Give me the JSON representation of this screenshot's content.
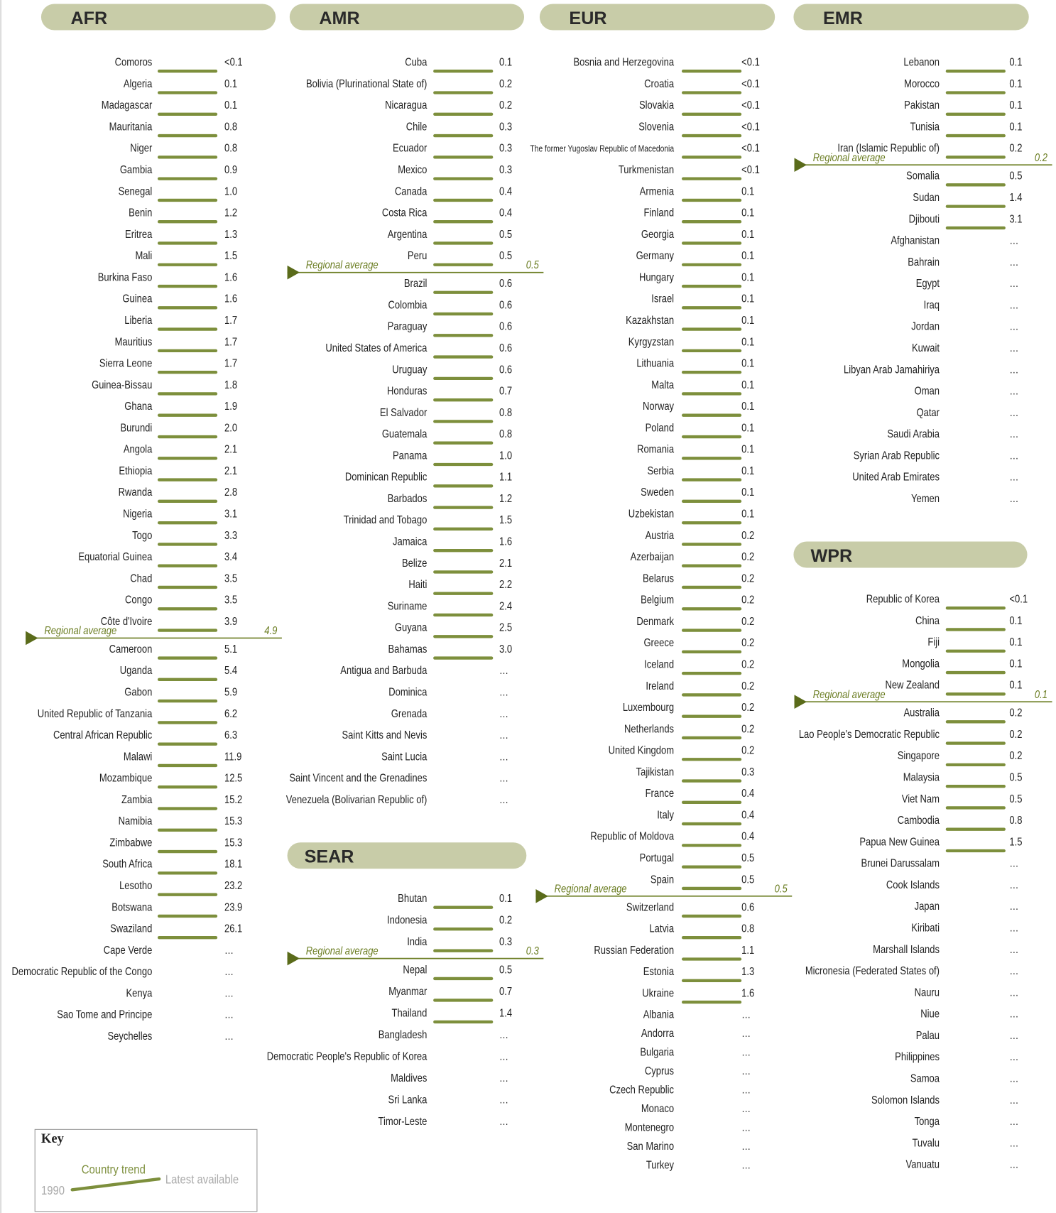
{
  "regions": [
    {
      "name": "AFR",
      "above_average": [
        {
          "country": "Comoros",
          "value": "<0.1"
        },
        {
          "country": "Algeria",
          "value": "0.1"
        },
        {
          "country": "Madagascar",
          "value": "0.1"
        },
        {
          "country": "Mauritania",
          "value": "0.8"
        },
        {
          "country": "Niger",
          "value": "0.8"
        },
        {
          "country": "Gambia",
          "value": "0.9"
        },
        {
          "country": "Senegal",
          "value": "1.0"
        },
        {
          "country": "Benin",
          "value": "1.2"
        },
        {
          "country": "Eritrea",
          "value": "1.3"
        },
        {
          "country": "Mali",
          "value": "1.5"
        },
        {
          "country": "Burkina Faso",
          "value": "1.6"
        },
        {
          "country": "Guinea",
          "value": "1.6"
        },
        {
          "country": "Liberia",
          "value": "1.7"
        },
        {
          "country": "Mauritius",
          "value": "1.7"
        },
        {
          "country": "Sierra Leone",
          "value": "1.7"
        },
        {
          "country": "Guinea-Bissau",
          "value": "1.8"
        },
        {
          "country": "Ghana",
          "value": "1.9"
        },
        {
          "country": "Burundi",
          "value": "2.0"
        },
        {
          "country": "Angola",
          "value": "2.1"
        },
        {
          "country": "Ethiopia",
          "value": "2.1"
        },
        {
          "country": "Rwanda",
          "value": "2.8"
        },
        {
          "country": "Nigeria",
          "value": "3.1"
        },
        {
          "country": "Togo",
          "value": "3.3"
        },
        {
          "country": "Equatorial Guinea",
          "value": "3.4"
        },
        {
          "country": "Chad",
          "value": "3.5"
        },
        {
          "country": "Congo",
          "value": "3.5"
        },
        {
          "country": "Côte d'Ivoire",
          "value": "3.9"
        }
      ],
      "regional_average": {
        "label": "Regional average",
        "value": "4.9"
      },
      "below_average": [
        {
          "country": "Cameroon",
          "value": "5.1"
        },
        {
          "country": "Uganda",
          "value": "5.4"
        },
        {
          "country": "Gabon",
          "value": "5.9"
        },
        {
          "country": "United Republic of Tanzania",
          "value": "6.2"
        },
        {
          "country": "Central African Republic",
          "value": "6.3"
        },
        {
          "country": "Malawi",
          "value": "11.9"
        },
        {
          "country": "Mozambique",
          "value": "12.5"
        },
        {
          "country": "Zambia",
          "value": "15.2"
        },
        {
          "country": "Namibia",
          "value": "15.3"
        },
        {
          "country": "Zimbabwe",
          "value": "15.3"
        },
        {
          "country": "South Africa",
          "value": "18.1"
        },
        {
          "country": "Lesotho",
          "value": "23.2"
        },
        {
          "country": "Botswana",
          "value": "23.9"
        },
        {
          "country": "Swaziland",
          "value": "26.1"
        },
        {
          "country": "Cape Verde",
          "value": "…"
        },
        {
          "country": "Democratic Republic of the Congo",
          "value": "…"
        },
        {
          "country": "Kenya",
          "value": "…"
        },
        {
          "country": "Sao Tome and Principe",
          "value": "…"
        },
        {
          "country": "Seychelles",
          "value": "…"
        }
      ]
    },
    {
      "name": "AMR",
      "above_average": [
        {
          "country": "Cuba",
          "value": "0.1"
        },
        {
          "country": "Bolivia (Plurinational State of)",
          "value": "0.2"
        },
        {
          "country": "Nicaragua",
          "value": "0.2"
        },
        {
          "country": "Chile",
          "value": "0.3"
        },
        {
          "country": "Ecuador",
          "value": "0.3"
        },
        {
          "country": "Mexico",
          "value": "0.3"
        },
        {
          "country": "Canada",
          "value": "0.4"
        },
        {
          "country": "Costa Rica",
          "value": "0.4"
        },
        {
          "country": "Argentina",
          "value": "0.5"
        },
        {
          "country": "Peru",
          "value": "0.5"
        }
      ],
      "regional_average": {
        "label": "Regional average",
        "value": "0.5"
      },
      "below_average": [
        {
          "country": "Brazil",
          "value": "0.6"
        },
        {
          "country": "Colombia",
          "value": "0.6"
        },
        {
          "country": "Paraguay",
          "value": "0.6"
        },
        {
          "country": "United States of America",
          "value": "0.6"
        },
        {
          "country": "Uruguay",
          "value": "0.6"
        },
        {
          "country": "Honduras",
          "value": "0.7"
        },
        {
          "country": "El Salvador",
          "value": "0.8"
        },
        {
          "country": "Guatemala",
          "value": "0.8"
        },
        {
          "country": "Panama",
          "value": "1.0"
        },
        {
          "country": "Dominican Republic",
          "value": "1.1"
        },
        {
          "country": "Barbados",
          "value": "1.2"
        },
        {
          "country": "Trinidad and Tobago",
          "value": "1.5"
        },
        {
          "country": "Jamaica",
          "value": "1.6"
        },
        {
          "country": "Belize",
          "value": "2.1"
        },
        {
          "country": "Haiti",
          "value": "2.2"
        },
        {
          "country": "Suriname",
          "value": "2.4"
        },
        {
          "country": "Guyana",
          "value": "2.5"
        },
        {
          "country": "Bahamas",
          "value": "3.0"
        },
        {
          "country": "Antigua and Barbuda",
          "value": "…"
        },
        {
          "country": "Dominica",
          "value": "…"
        },
        {
          "country": "Grenada",
          "value": "…"
        },
        {
          "country": "Saint Kitts and Nevis",
          "value": "…"
        },
        {
          "country": "Saint Lucia",
          "value": "…"
        },
        {
          "country": "Saint Vincent and the Grenadines",
          "value": "…"
        },
        {
          "country": "Venezuela (Bolivarian Republic of)",
          "value": "…"
        }
      ]
    },
    {
      "name": "EUR",
      "above_average": [
        {
          "country": "Bosnia and Herzegovina",
          "value": "<0.1"
        },
        {
          "country": "Croatia",
          "value": "<0.1"
        },
        {
          "country": "Slovakia",
          "value": "<0.1"
        },
        {
          "country": "Slovenia",
          "value": "<0.1"
        },
        {
          "country": "The former Yugoslav Republic of Macedonia",
          "value": "<0.1"
        },
        {
          "country": "Turkmenistan",
          "value": "<0.1"
        },
        {
          "country": "Armenia",
          "value": "0.1"
        },
        {
          "country": "Finland",
          "value": "0.1"
        },
        {
          "country": "Georgia",
          "value": "0.1"
        },
        {
          "country": "Germany",
          "value": "0.1"
        },
        {
          "country": "Hungary",
          "value": "0.1"
        },
        {
          "country": "Israel",
          "value": "0.1"
        },
        {
          "country": "Kazakhstan",
          "value": "0.1"
        },
        {
          "country": "Kyrgyzstan",
          "value": "0.1"
        },
        {
          "country": "Lithuania",
          "value": "0.1"
        },
        {
          "country": "Malta",
          "value": "0.1"
        },
        {
          "country": "Norway",
          "value": "0.1"
        },
        {
          "country": "Poland",
          "value": "0.1"
        },
        {
          "country": "Romania",
          "value": "0.1"
        },
        {
          "country": "Serbia",
          "value": "0.1"
        },
        {
          "country": "Sweden",
          "value": "0.1"
        },
        {
          "country": "Uzbekistan",
          "value": "0.1"
        },
        {
          "country": "Austria",
          "value": "0.2"
        },
        {
          "country": "Azerbaijan",
          "value": "0.2"
        },
        {
          "country": "Belarus",
          "value": "0.2"
        },
        {
          "country": "Belgium",
          "value": "0.2"
        },
        {
          "country": "Denmark",
          "value": "0.2"
        },
        {
          "country": "Greece",
          "value": "0.2"
        },
        {
          "country": "Iceland",
          "value": "0.2"
        },
        {
          "country": "Ireland",
          "value": "0.2"
        },
        {
          "country": "Luxembourg",
          "value": "0.2"
        },
        {
          "country": "Netherlands",
          "value": "0.2"
        },
        {
          "country": "United Kingdom",
          "value": "0.2"
        },
        {
          "country": "Tajikistan",
          "value": "0.3"
        },
        {
          "country": "France",
          "value": "0.4"
        },
        {
          "country": "Italy",
          "value": "0.4"
        },
        {
          "country": "Republic of Moldova",
          "value": "0.4"
        },
        {
          "country": "Portugal",
          "value": "0.5"
        },
        {
          "country": "Spain",
          "value": "0.5"
        }
      ],
      "regional_average": {
        "label": "Regional average",
        "value": "0.5"
      },
      "below_average": [
        {
          "country": "Switzerland",
          "value": "0.6"
        },
        {
          "country": "Latvia",
          "value": "0.8"
        },
        {
          "country": "Russian Federation",
          "value": "1.1"
        },
        {
          "country": "Estonia",
          "value": "1.3"
        },
        {
          "country": "Ukraine",
          "value": "1.6"
        },
        {
          "country": "Albania",
          "value": "…"
        },
        {
          "country": "Andorra",
          "value": "…"
        },
        {
          "country": "Bulgaria",
          "value": "…"
        },
        {
          "country": "Cyprus",
          "value": "…"
        },
        {
          "country": "Czech Republic",
          "value": "…"
        },
        {
          "country": "Monaco",
          "value": "…"
        },
        {
          "country": "Montenegro",
          "value": "…"
        },
        {
          "country": "San Marino",
          "value": "…"
        },
        {
          "country": "Turkey",
          "value": "…"
        }
      ]
    },
    {
      "name": "EMR",
      "above_average": [
        {
          "country": "Lebanon",
          "value": "0.1"
        },
        {
          "country": "Morocco",
          "value": "0.1"
        },
        {
          "country": "Pakistan",
          "value": "0.1"
        },
        {
          "country": "Tunisia",
          "value": "0.1"
        },
        {
          "country": "Iran (Islamic Republic of)",
          "value": "0.2"
        }
      ],
      "regional_average": {
        "label": "Regional average",
        "value": "0.2"
      },
      "below_average": [
        {
          "country": "Somalia",
          "value": "0.5"
        },
        {
          "country": "Sudan",
          "value": "1.4"
        },
        {
          "country": "Djibouti",
          "value": "3.1"
        },
        {
          "country": "Afghanistan",
          "value": "…"
        },
        {
          "country": "Bahrain",
          "value": "…"
        },
        {
          "country": "Egypt",
          "value": "…"
        },
        {
          "country": "Iraq",
          "value": "…"
        },
        {
          "country": "Jordan",
          "value": "…"
        },
        {
          "country": "Kuwait",
          "value": "…"
        },
        {
          "country": "Libyan Arab Jamahiriya",
          "value": "…"
        },
        {
          "country": "Oman",
          "value": "…"
        },
        {
          "country": "Qatar",
          "value": "…"
        },
        {
          "country": "Saudi Arabia",
          "value": "…"
        },
        {
          "country": "Syrian Arab Republic",
          "value": "…"
        },
        {
          "country": "United Arab Emirates",
          "value": "…"
        },
        {
          "country": "Yemen",
          "value": "…"
        }
      ]
    },
    {
      "name": "WPR",
      "above_average": [
        {
          "country": "Republic of Korea",
          "value": "<0.1"
        },
        {
          "country": "China",
          "value": "0.1"
        },
        {
          "country": "Fiji",
          "value": "0.1"
        },
        {
          "country": "Mongolia",
          "value": "0.1"
        },
        {
          "country": "New Zealand",
          "value": "0.1"
        }
      ],
      "regional_average": {
        "label": "Regional average",
        "value": "0.1"
      },
      "below_average": [
        {
          "country": "Australia",
          "value": "0.2"
        },
        {
          "country": "Lao People's Democratic Republic",
          "value": "0.2"
        },
        {
          "country": "Singapore",
          "value": "0.2"
        },
        {
          "country": "Malaysia",
          "value": "0.5"
        },
        {
          "country": "Viet Nam",
          "value": "0.5"
        },
        {
          "country": "Cambodia",
          "value": "0.8"
        },
        {
          "country": "Papua New Guinea",
          "value": "1.5"
        },
        {
          "country": "Brunei Darussalam",
          "value": "…"
        },
        {
          "country": "Cook Islands",
          "value": "…"
        },
        {
          "country": "Japan",
          "value": "…"
        },
        {
          "country": "Kiribati",
          "value": "…"
        },
        {
          "country": "Marshall Islands",
          "value": "…"
        },
        {
          "country": "Micronesia (Federated States of)",
          "value": "…"
        },
        {
          "country": "Nauru",
          "value": "…"
        },
        {
          "country": "Niue",
          "value": "…"
        },
        {
          "country": "Palau",
          "value": "…"
        },
        {
          "country": "Philippines",
          "value": "…"
        },
        {
          "country": "Samoa",
          "value": "…"
        },
        {
          "country": "Solomon Islands",
          "value": "…"
        },
        {
          "country": "Tonga",
          "value": "…"
        },
        {
          "country": "Tuvalu",
          "value": "…"
        },
        {
          "country": "Vanuatu",
          "value": "…"
        }
      ]
    },
    {
      "name": "SEAR",
      "above_average": [
        {
          "country": "Bhutan",
          "value": "0.1"
        },
        {
          "country": "Indonesia",
          "value": "0.2"
        },
        {
          "country": "India",
          "value": "0.3"
        }
      ],
      "regional_average": {
        "label": "Regional average",
        "value": "0.3"
      },
      "below_average": [
        {
          "country": "Nepal",
          "value": "0.5"
        },
        {
          "country": "Myanmar",
          "value": "0.7"
        },
        {
          "country": "Thailand",
          "value": "1.4"
        },
        {
          "country": "Bangladesh",
          "value": "…"
        },
        {
          "country": "Democratic People's Republic of Korea",
          "value": "…"
        },
        {
          "country": "Maldives",
          "value": "…"
        },
        {
          "country": "Sri Lanka",
          "value": "…"
        },
        {
          "country": "Timor-Leste",
          "value": "…"
        }
      ]
    }
  ],
  "key": {
    "title": "Key",
    "trend": "Country trend",
    "start": "1990",
    "end": "Latest available"
  }
}
